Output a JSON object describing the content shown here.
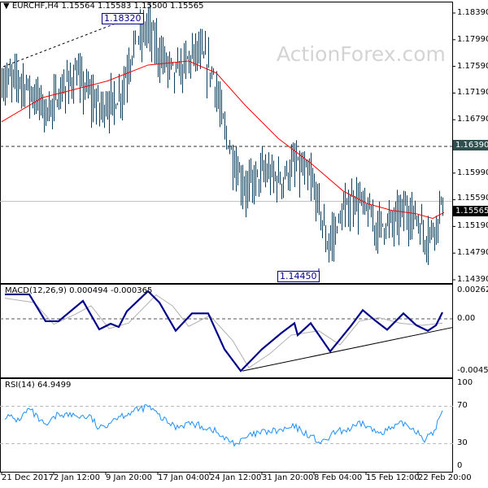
{
  "header": {
    "symbol": "EURCHF,H4",
    "ohlc": "1.15564 1.15583 1.15500 1.15565"
  },
  "watermark": "ActionForex.com",
  "annotations": {
    "high_label": "1.18320",
    "low_label": "1.14450"
  },
  "levels": {
    "resistance": "1.16390",
    "current": "1.15565"
  },
  "colors": {
    "bars": "#0b3d5c",
    "ma": "#ff0000",
    "macd": "#00008b",
    "signal": "#b0b0b0",
    "rsi": "#1e90ff",
    "resistance_tag": "#2f4f4f",
    "current_tag": "#000000"
  },
  "price_axis": [
    "1.18390",
    "1.17990",
    "1.17590",
    "1.17190",
    "1.16790",
    "1.16390",
    "1.15990",
    "1.15590",
    "1.15190",
    "1.14790",
    "1.14390"
  ],
  "macd_panel": {
    "title": "MACD(12,26,9) 0.000494 -0.000365",
    "axis": [
      "0.00262",
      "0.00",
      "-0.004526"
    ]
  },
  "rsi_panel": {
    "title": "RSI(14) 64.9499",
    "axis": [
      "100",
      "70",
      "30",
      "0"
    ]
  },
  "time_axis": [
    "21 Dec 2017",
    "2 Jan 12:00",
    "9 Jan 20:00",
    "17 Jan 04:00",
    "24 Jan 12:00",
    "31 Jan 20:00",
    "8 Feb 04:00",
    "15 Feb 12:00",
    "22 Feb 20:00"
  ],
  "chart_data": [
    {
      "type": "ohlc-bar",
      "title": "EURCHF,H4",
      "ylim": [
        1.1439,
        1.1839
      ],
      "close_path": [
        [
          0,
          1.1737
        ],
        [
          10,
          1.1745
        ],
        [
          20,
          1.1718
        ],
        [
          28,
          1.1694
        ],
        [
          45,
          1.1749
        ],
        [
          60,
          1.17
        ],
        [
          72,
          1.1712
        ],
        [
          82,
          1.1798
        ],
        [
          90,
          1.1822
        ],
        [
          97,
          1.178
        ],
        [
          107,
          1.1749
        ],
        [
          120,
          1.1786
        ],
        [
          130,
          1.1749
        ],
        [
          137,
          1.1663
        ],
        [
          145,
          1.1602
        ],
        [
          150,
          1.1578
        ],
        [
          160,
          1.1602
        ],
        [
          172,
          1.159
        ],
        [
          180,
          1.1615
        ],
        [
          190,
          1.159
        ],
        [
          195,
          1.1553
        ],
        [
          200,
          1.1492
        ],
        [
          205,
          1.1516
        ],
        [
          210,
          1.1541
        ],
        [
          217,
          1.1565
        ],
        [
          222,
          1.1553
        ],
        [
          230,
          1.1522
        ],
        [
          240,
          1.1528
        ],
        [
          247,
          1.1547
        ],
        [
          255,
          1.1535
        ],
        [
          260,
          1.1504
        ],
        [
          265,
          1.1516
        ],
        [
          271,
          1.1558
        ]
      ],
      "moving_average": [
        [
          0,
          1.1676
        ],
        [
          25,
          1.1712
        ],
        [
          65,
          1.1737
        ],
        [
          90,
          1.1761
        ],
        [
          115,
          1.1767
        ],
        [
          132,
          1.1749
        ],
        [
          150,
          1.17
        ],
        [
          170,
          1.1651
        ],
        [
          190,
          1.1614
        ],
        [
          210,
          1.1572
        ],
        [
          225,
          1.1553
        ],
        [
          240,
          1.1543
        ],
        [
          255,
          1.1538
        ],
        [
          265,
          1.1531
        ],
        [
          272,
          1.154
        ]
      ]
    },
    {
      "type": "line",
      "title": "MACD(12,26,9)",
      "ylim": [
        -0.004526,
        0.00262
      ],
      "macd": [
        [
          2,
          0.00225
        ],
        [
          17,
          0.00225
        ],
        [
          27,
          -0.00022
        ],
        [
          35,
          -0.00022
        ],
        [
          50,
          0.00165
        ],
        [
          60,
          -0.00097
        ],
        [
          67,
          -0.00045
        ],
        [
          72,
          -0.00075
        ],
        [
          77,
          0.0007
        ],
        [
          90,
          0.00255
        ],
        [
          97,
          0.0015
        ],
        [
          107,
          -0.0011
        ],
        [
          117,
          0.0005
        ],
        [
          127,
          0.0005
        ],
        [
          137,
          -0.0028
        ],
        [
          147,
          -0.0048
        ],
        [
          160,
          -0.0028
        ],
        [
          172,
          -0.0013
        ],
        [
          180,
          -0.0004
        ],
        [
          182,
          -0.0015
        ],
        [
          190,
          -0.0004
        ],
        [
          202,
          -0.003
        ],
        [
          215,
          -0.0006
        ],
        [
          222,
          0.0008
        ],
        [
          230,
          -0.0002
        ],
        [
          237,
          -0.001
        ],
        [
          247,
          0.0005
        ],
        [
          255,
          -0.0006
        ],
        [
          262,
          -0.0011
        ],
        [
          267,
          -0.0006
        ],
        [
          271,
          0.0006
        ]
      ],
      "signal": [
        [
          2,
          0.0019
        ],
        [
          20,
          0.0015
        ],
        [
          32,
          -0.0005
        ],
        [
          45,
          0.0004
        ],
        [
          55,
          0.0012
        ],
        [
          66,
          -0.0009
        ],
        [
          78,
          -0.0004
        ],
        [
          95,
          0.0022
        ],
        [
          105,
          0.0012
        ],
        [
          115,
          -0.0007
        ],
        [
          128,
          0.0003
        ],
        [
          142,
          -0.002
        ],
        [
          152,
          -0.0045
        ],
        [
          165,
          -0.0032
        ],
        [
          178,
          -0.0015
        ],
        [
          195,
          -0.0011
        ],
        [
          208,
          -0.0024
        ],
        [
          220,
          -0.0002
        ],
        [
          232,
          0.0001
        ],
        [
          245,
          -0.0004
        ],
        [
          258,
          -0.0006
        ],
        [
          271,
          -0.0004
        ]
      ],
      "trendline": [
        [
          148,
          -0.0048
        ],
        [
          277,
          -0.0008
        ]
      ]
    },
    {
      "type": "line",
      "title": "RSI(14)",
      "ylim": [
        0,
        100
      ],
      "levels": [
        30,
        70
      ],
      "rsi": [
        [
          2,
          60
        ],
        [
          10,
          55
        ],
        [
          17,
          67
        ],
        [
          27,
          48
        ],
        [
          35,
          62
        ],
        [
          45,
          60
        ],
        [
          55,
          58
        ],
        [
          60,
          45
        ],
        [
          70,
          58
        ],
        [
          82,
          65
        ],
        [
          90,
          70
        ],
        [
          100,
          55
        ],
        [
          107,
          48
        ],
        [
          115,
          52
        ],
        [
          120,
          50
        ],
        [
          130,
          45
        ],
        [
          137,
          35
        ],
        [
          145,
          30
        ],
        [
          152,
          38
        ],
        [
          160,
          42
        ],
        [
          172,
          44
        ],
        [
          180,
          48
        ],
        [
          190,
          38
        ],
        [
          197,
          30
        ],
        [
          205,
          42
        ],
        [
          215,
          46
        ],
        [
          222,
          52
        ],
        [
          230,
          42
        ],
        [
          240,
          46
        ],
        [
          247,
          52
        ],
        [
          255,
          44
        ],
        [
          260,
          35
        ],
        [
          265,
          40
        ],
        [
          271,
          65
        ]
      ]
    }
  ]
}
